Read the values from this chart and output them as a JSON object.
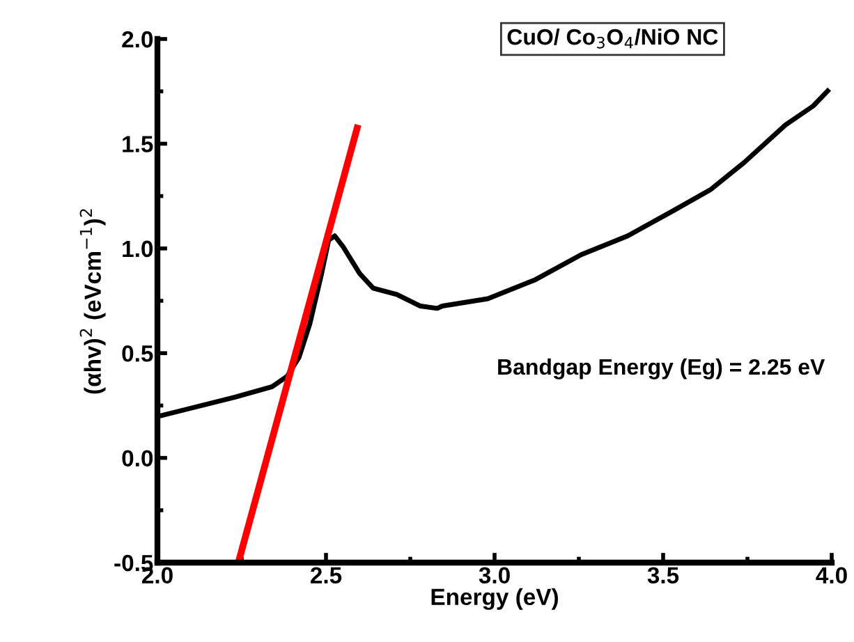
{
  "chart_data": {
    "type": "line",
    "title": "CuO/ Co$_{3}$O$_{4}$/NiO NC",
    "xlabel": "Energy (eV)",
    "ylabel": "(αhv)$^{2}$ (eVcm$^{−1}$)$^{2}$",
    "annotations": [
      "Bandgap Energy (Eg) = 2.25 eV"
    ],
    "xlim": [
      2.0,
      4.0
    ],
    "xticks": [
      {
        "value": 2.0,
        "label": "2.0"
      },
      2.5,
      {
        "value": 3.0,
        "label": "3.0"
      },
      3.5,
      {
        "value": 4.0,
        "label": "4.0"
      }
    ],
    "ylim": [
      -0.5,
      2.0
    ],
    "yticks": [
      -0.5,
      {
        "value": 0.0,
        "label": "0.0"
      },
      0.5,
      {
        "value": 1.0,
        "label": "1.0"
      },
      1.5,
      {
        "value": 2.0,
        "label": "2.0"
      }
    ],
    "grid": false,
    "legend": false,
    "series": [
      {
        "color": "#000000",
        "x": [
          2.007,
          2.23,
          2.34,
          2.385,
          2.42,
          2.452,
          2.487,
          2.508,
          2.526,
          2.55,
          2.6,
          2.64,
          2.71,
          2.78,
          2.83,
          2.845,
          2.98,
          3.12,
          3.257,
          3.395,
          3.53,
          3.64,
          3.74,
          3.863,
          3.945,
          3.993
        ],
        "values": [
          0.2,
          0.29,
          0.34,
          0.39,
          0.48,
          0.64,
          0.88,
          1.04,
          1.06,
          1.01,
          0.88,
          0.81,
          0.78,
          0.725,
          0.714,
          0.725,
          0.76,
          0.85,
          0.97,
          1.06,
          1.18,
          1.28,
          1.41,
          1.59,
          1.68,
          1.76
        ]
      },
      {
        "color": "#ff0000",
        "x": [
          2.24,
          2.595
        ],
        "values": [
          -0.5,
          1.59
        ]
      }
    ]
  }
}
